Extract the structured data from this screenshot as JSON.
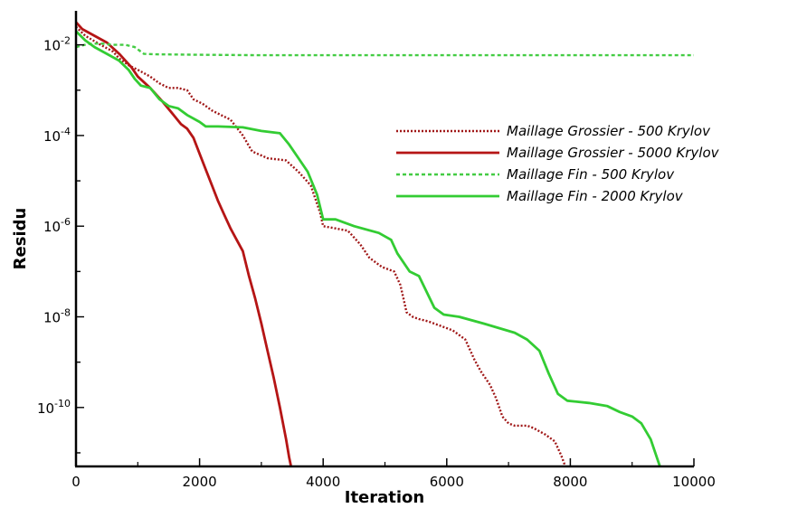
{
  "chart_data": {
    "type": "line",
    "title": "",
    "xlabel": "Iteration",
    "ylabel": "Residu",
    "xlim": [
      0,
      10000
    ],
    "ylim_log10": [
      -11.3,
      -1.25
    ],
    "y_scale": "log",
    "grid": false,
    "legend_position": "center-right",
    "x_ticks": [
      0,
      2000,
      4000,
      6000,
      8000,
      10000
    ],
    "x_tick_labels": [
      "0",
      "2000",
      "4000",
      "6000",
      "8000",
      "10000"
    ],
    "y_ticks_log10": [
      -10,
      -8,
      -6,
      -4,
      -2
    ],
    "y_tick_labels": [
      {
        "base": "10",
        "exp": "-10"
      },
      {
        "base": "10",
        "exp": "-8"
      },
      {
        "base": "10",
        "exp": "-6"
      },
      {
        "base": "10",
        "exp": "-4"
      },
      {
        "base": "10",
        "exp": "-2"
      }
    ],
    "series": [
      {
        "name": "Maillage Grossier - 500 Krylov",
        "color": "#a01818",
        "dash": "dotted",
        "points": [
          [
            0,
            -1.6
          ],
          [
            150,
            -1.8
          ],
          [
            400,
            -2.0
          ],
          [
            600,
            -2.15
          ],
          [
            700,
            -2.3
          ],
          [
            850,
            -2.45
          ],
          [
            1000,
            -2.55
          ],
          [
            1200,
            -2.7
          ],
          [
            1350,
            -2.85
          ],
          [
            1500,
            -2.95
          ],
          [
            1650,
            -2.95
          ],
          [
            1800,
            -3.0
          ],
          [
            1900,
            -3.2
          ],
          [
            2050,
            -3.3
          ],
          [
            2200,
            -3.45
          ],
          [
            2500,
            -3.65
          ],
          [
            2700,
            -4.0
          ],
          [
            2850,
            -4.35
          ],
          [
            3100,
            -4.5
          ],
          [
            3400,
            -4.55
          ],
          [
            3600,
            -4.8
          ],
          [
            3800,
            -5.1
          ],
          [
            3950,
            -5.7
          ],
          [
            4000,
            -6.0
          ],
          [
            4200,
            -6.05
          ],
          [
            4400,
            -6.1
          ],
          [
            4600,
            -6.4
          ],
          [
            4750,
            -6.7
          ],
          [
            4950,
            -6.9
          ],
          [
            5150,
            -7.0
          ],
          [
            5250,
            -7.3
          ],
          [
            5350,
            -7.9
          ],
          [
            5450,
            -8.0
          ],
          [
            5550,
            -8.05
          ],
          [
            5700,
            -8.1
          ],
          [
            5900,
            -8.2
          ],
          [
            6100,
            -8.3
          ],
          [
            6300,
            -8.5
          ],
          [
            6450,
            -8.95
          ],
          [
            6550,
            -9.2
          ],
          [
            6700,
            -9.5
          ],
          [
            6800,
            -9.8
          ],
          [
            6900,
            -10.2
          ],
          [
            7000,
            -10.35
          ],
          [
            7100,
            -10.4
          ],
          [
            7300,
            -10.4
          ],
          [
            7400,
            -10.45
          ],
          [
            7600,
            -10.6
          ],
          [
            7750,
            -10.75
          ],
          [
            7850,
            -11.05
          ],
          [
            7920,
            -11.3
          ]
        ]
      },
      {
        "name": "Maillage Grossier - 5000 Krylov",
        "color": "#b51515",
        "dash": "solid",
        "points": [
          [
            0,
            -1.5
          ],
          [
            100,
            -1.65
          ],
          [
            300,
            -1.8
          ],
          [
            500,
            -1.95
          ],
          [
            700,
            -2.2
          ],
          [
            900,
            -2.5
          ],
          [
            1000,
            -2.7
          ],
          [
            1200,
            -2.95
          ],
          [
            1400,
            -3.25
          ],
          [
            1550,
            -3.5
          ],
          [
            1700,
            -3.75
          ],
          [
            1800,
            -3.85
          ],
          [
            1900,
            -4.05
          ],
          [
            2000,
            -4.4
          ],
          [
            2100,
            -4.75
          ],
          [
            2200,
            -5.1
          ],
          [
            2300,
            -5.45
          ],
          [
            2400,
            -5.75
          ],
          [
            2500,
            -6.05
          ],
          [
            2600,
            -6.3
          ],
          [
            2700,
            -6.55
          ],
          [
            2800,
            -7.1
          ],
          [
            2900,
            -7.6
          ],
          [
            3000,
            -8.15
          ],
          [
            3100,
            -8.75
          ],
          [
            3200,
            -9.35
          ],
          [
            3300,
            -10.0
          ],
          [
            3400,
            -10.7
          ],
          [
            3450,
            -11.1
          ],
          [
            3480,
            -11.3
          ]
        ]
      },
      {
        "name": "Maillage Fin - 500 Krylov",
        "color": "#44cc44",
        "dash": "dashed",
        "points": [
          [
            0,
            -2.05
          ],
          [
            200,
            -1.98
          ],
          [
            400,
            -1.97
          ],
          [
            600,
            -2.0
          ],
          [
            800,
            -2.0
          ],
          [
            950,
            -2.05
          ],
          [
            1100,
            -2.2
          ],
          [
            1300,
            -2.21
          ],
          [
            2000,
            -2.22
          ],
          [
            3000,
            -2.23
          ],
          [
            4000,
            -2.23
          ],
          [
            5000,
            -2.23
          ],
          [
            6000,
            -2.23
          ],
          [
            7000,
            -2.23
          ],
          [
            8000,
            -2.23
          ],
          [
            9000,
            -2.23
          ],
          [
            10000,
            -2.23
          ]
        ]
      },
      {
        "name": "Maillage Fin - 2000 Krylov",
        "color": "#33cc33",
        "dash": "solid",
        "points": [
          [
            0,
            -1.7
          ],
          [
            150,
            -1.9
          ],
          [
            300,
            -2.05
          ],
          [
            500,
            -2.2
          ],
          [
            700,
            -2.35
          ],
          [
            850,
            -2.55
          ],
          [
            950,
            -2.75
          ],
          [
            1050,
            -2.9
          ],
          [
            1200,
            -2.95
          ],
          [
            1350,
            -3.2
          ],
          [
            1500,
            -3.35
          ],
          [
            1650,
            -3.4
          ],
          [
            1800,
            -3.55
          ],
          [
            2000,
            -3.7
          ],
          [
            2100,
            -3.8
          ],
          [
            2300,
            -3.8
          ],
          [
            2700,
            -3.82
          ],
          [
            3000,
            -3.9
          ],
          [
            3300,
            -3.95
          ],
          [
            3450,
            -4.2
          ],
          [
            3600,
            -4.5
          ],
          [
            3750,
            -4.8
          ],
          [
            3900,
            -5.3
          ],
          [
            4000,
            -5.85
          ],
          [
            4200,
            -5.85
          ],
          [
            4500,
            -6.0
          ],
          [
            4900,
            -6.15
          ],
          [
            5100,
            -6.3
          ],
          [
            5200,
            -6.6
          ],
          [
            5400,
            -7.0
          ],
          [
            5550,
            -7.1
          ],
          [
            5800,
            -7.8
          ],
          [
            5950,
            -7.95
          ],
          [
            6200,
            -8.0
          ],
          [
            6600,
            -8.15
          ],
          [
            7100,
            -8.35
          ],
          [
            7300,
            -8.5
          ],
          [
            7500,
            -8.75
          ],
          [
            7650,
            -9.25
          ],
          [
            7800,
            -9.7
          ],
          [
            7950,
            -9.85
          ],
          [
            8300,
            -9.9
          ],
          [
            8600,
            -9.97
          ],
          [
            8800,
            -10.1
          ],
          [
            9000,
            -10.2
          ],
          [
            9150,
            -10.35
          ],
          [
            9300,
            -10.7
          ],
          [
            9450,
            -11.3
          ]
        ]
      }
    ]
  }
}
